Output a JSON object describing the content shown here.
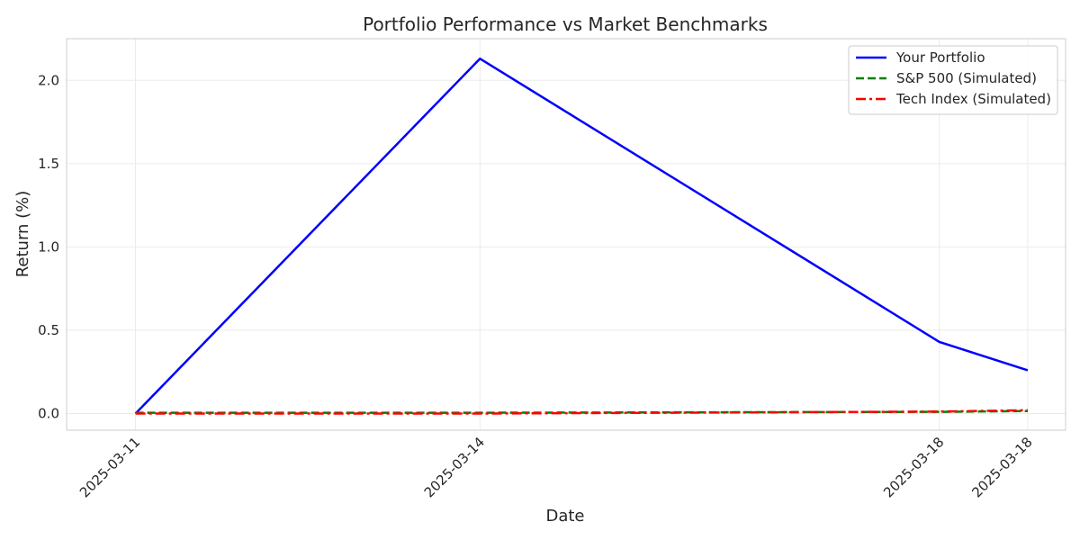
{
  "chart_data": {
    "type": "line",
    "title": "Portfolio Performance vs Market Benchmarks",
    "xlabel": "Date",
    "ylabel": "Return (%)",
    "x": [
      "2025-03-11",
      "2025-03-14",
      "2025-03-18",
      "2025-03-18"
    ],
    "x_positions": [
      0,
      3,
      7.0,
      7.77
    ],
    "ylim": [
      -0.1,
      2.25
    ],
    "yticks": [
      0.0,
      0.5,
      1.0,
      1.5,
      2.0
    ],
    "ytick_labels": [
      "0.0",
      "0.5",
      "1.0",
      "1.5",
      "2.0"
    ],
    "grid": true,
    "legend_position": "top-right",
    "series": [
      {
        "name": "Your Portfolio",
        "values": [
          0.0,
          2.13,
          0.43,
          0.26
        ],
        "color": "#0000ff",
        "style": "solid"
      },
      {
        "name": "S&P 500 (Simulated)",
        "values": [
          0.005,
          0.005,
          0.01,
          0.015
        ],
        "color": "#008000",
        "style": "dashed"
      },
      {
        "name": "Tech Index (Simulated)",
        "values": [
          0.0,
          0.0,
          0.012,
          0.02
        ],
        "color": "#ff0000",
        "style": "dashdot"
      }
    ]
  }
}
